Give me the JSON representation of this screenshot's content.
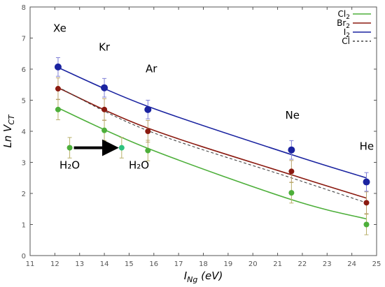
{
  "chart_data": {
    "type": "scatter",
    "xlabel": {
      "main": "I",
      "sub": "Ng",
      "rest": " (eV)"
    },
    "ylabel": {
      "main": "Ln V",
      "sub": "CT"
    },
    "xlim": [
      11,
      25
    ],
    "ylim": [
      0,
      8
    ],
    "xticks": [
      11,
      12,
      13,
      14,
      15,
      16,
      17,
      18,
      19,
      20,
      21,
      22,
      23,
      24,
      25
    ],
    "yticks": [
      0,
      1,
      2,
      3,
      4,
      5,
      6,
      7,
      8
    ],
    "grid": false,
    "legend_position": "top-right",
    "legend": [
      {
        "main": "Cl",
        "sub": "2",
        "color": "#4daf3a",
        "dashed": false
      },
      {
        "main": "Br",
        "sub": "2",
        "color": "#8b1a10",
        "dashed": false
      },
      {
        "main": "I",
        "sub": "2",
        "color": "#1a23a0",
        "dashed": false
      },
      {
        "main": "Cl",
        "sub": "",
        "color": "#444444",
        "dashed": true
      }
    ],
    "x": [
      12.13,
      14.0,
      15.76,
      21.56,
      24.59
    ],
    "series": [
      {
        "color": "#4daf3a",
        "errcolor": "#b9b06a",
        "values": [
          4.7,
          4.03,
          3.38,
          2.02,
          1.0
        ],
        "errors": [
          0.33,
          0.33,
          0.33,
          0.33,
          0.33
        ],
        "fit": {
          "x": [
            12.13,
            15.76,
            21.56,
            24.59
          ],
          "y": [
            4.75,
            3.45,
            1.8,
            1.18
          ]
        }
      },
      {
        "color": "#8b1a10",
        "errcolor": "#b9a06a",
        "values": [
          5.37,
          4.7,
          4.0,
          2.71,
          1.7
        ],
        "errors": [
          0.35,
          0.35,
          0.35,
          0.35,
          0.35
        ],
        "fit": {
          "x": [
            12.13,
            15.76,
            21.56,
            24.59
          ],
          "y": [
            5.4,
            4.1,
            2.6,
            1.85
          ]
        }
      },
      {
        "color": "#1a23a0",
        "errcolor": "#7f7fd6",
        "values": [
          6.07,
          5.4,
          4.7,
          3.4,
          2.37
        ],
        "errors": [
          0.3,
          0.3,
          0.3,
          0.3,
          0.3
        ],
        "fit": {
          "x": [
            12.13,
            15.76,
            21.56,
            24.59
          ],
          "y": [
            6.05,
            4.8,
            3.25,
            2.5
          ]
        }
      }
    ],
    "dashed_fit": {
      "x": [
        12.13,
        15.76,
        21.56,
        24.59
      ],
      "y": [
        5.42,
        4.02,
        2.5,
        1.7
      ]
    },
    "h2o": {
      "color": "#4daf3a",
      "points": [
        {
          "x": 12.6,
          "y": 3.47,
          "err": 0.33
        },
        {
          "x": 14.7,
          "y": 3.47,
          "err": 0.33
        }
      ],
      "labels": [
        {
          "text": "H₂O",
          "x": 12.6,
          "y": 2.8
        },
        {
          "text": "H₂O",
          "x": 15.4,
          "y": 2.8
        }
      ]
    },
    "annotations": [
      {
        "text": "Xe",
        "x": 12.2,
        "y": 7.2
      },
      {
        "text": "Kr",
        "x": 14.0,
        "y": 6.6
      },
      {
        "text": "Ar",
        "x": 15.9,
        "y": 5.9
      },
      {
        "text": "Ne",
        "x": 21.6,
        "y": 4.4
      },
      {
        "text": "He",
        "x": 24.6,
        "y": 3.4
      }
    ]
  }
}
